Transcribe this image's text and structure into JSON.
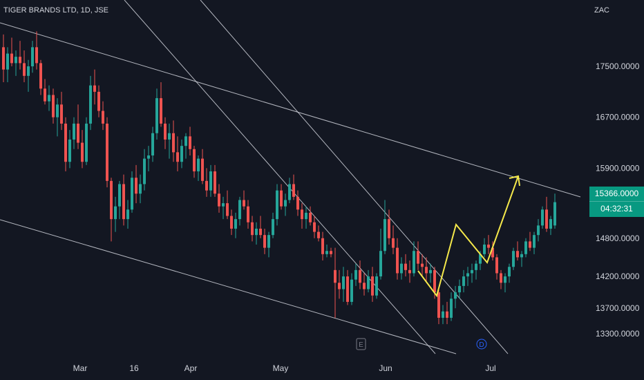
{
  "header": {
    "symbol": "TIGER BRANDS LTD, 1D, JSE",
    "currency": "ZAC"
  },
  "last_price": {
    "value": "15366.0000",
    "countdown": "04:32:31"
  },
  "events": [
    {
      "label": "E",
      "date": "earnings"
    },
    {
      "label": "D",
      "date": "dividend"
    }
  ],
  "colors": {
    "background": "#131722",
    "up": "#26a69a",
    "down": "#ef5350",
    "trendline": "#d1d4dc",
    "annotation": "#f5e94b",
    "badge": "#089981"
  },
  "chart_data": {
    "type": "candlestick",
    "y_ticks": [
      "17500.0000",
      "16700.0000",
      "15900.0000",
      "14800.0000",
      "14200.0000",
      "13700.0000",
      "13300.0000"
    ],
    "x_ticks": [
      "Mar",
      "16",
      "Apr",
      "May",
      "Jun",
      "Jul"
    ],
    "ylim": [
      12950,
      18100
    ],
    "candles": [
      [
        17800,
        18000,
        17250,
        17450
      ],
      [
        17450,
        17800,
        17250,
        17700
      ],
      [
        17700,
        17950,
        17500,
        17550
      ],
      [
        17550,
        17750,
        17350,
        17650
      ],
      [
        17650,
        17900,
        17450,
        17550
      ],
      [
        17550,
        17750,
        17250,
        17350
      ],
      [
        17350,
        17600,
        17100,
        17500
      ],
      [
        17500,
        17900,
        17400,
        17800
      ],
      [
        17800,
        18050,
        17450,
        17550
      ],
      [
        17550,
        17600,
        17050,
        17150
      ],
      [
        17150,
        17300,
        16900,
        16950
      ],
      [
        16950,
        17200,
        16800,
        17050
      ],
      [
        17050,
        17150,
        16600,
        16700
      ],
      [
        16700,
        17000,
        16400,
        16900
      ],
      [
        16900,
        17100,
        16500,
        16600
      ],
      [
        16600,
        16700,
        15850,
        16000
      ],
      [
        16000,
        16500,
        15900,
        16350
      ],
      [
        16350,
        16700,
        16200,
        16600
      ],
      [
        16600,
        16900,
        16200,
        16300
      ],
      [
        16300,
        16500,
        15900,
        16000
      ],
      [
        16000,
        16700,
        15950,
        16600
      ],
      [
        16600,
        17350,
        16500,
        17200
      ],
      [
        17200,
        17450,
        16900,
        17100
      ],
      [
        17100,
        17200,
        16700,
        16800
      ],
      [
        16800,
        16950,
        16500,
        16600
      ],
      [
        16600,
        16700,
        15600,
        15700
      ],
      [
        15700,
        15750,
        14750,
        15100
      ],
      [
        15100,
        15450,
        14900,
        15300
      ],
      [
        15300,
        15700,
        15100,
        15650
      ],
      [
        15650,
        15800,
        15000,
        15100
      ],
      [
        15100,
        15400,
        14950,
        15250
      ],
      [
        15250,
        15850,
        15200,
        15750
      ],
      [
        15750,
        15950,
        15350,
        15500
      ],
      [
        15500,
        15800,
        15350,
        15650
      ],
      [
        15650,
        16200,
        15550,
        16050
      ],
      [
        16050,
        16250,
        15850,
        16100
      ],
      [
        16100,
        16550,
        16000,
        16450
      ],
      [
        16450,
        17150,
        16350,
        17000
      ],
      [
        17000,
        17250,
        16550,
        16600
      ],
      [
        16600,
        16700,
        16200,
        16350
      ],
      [
        16350,
        16600,
        16050,
        16450
      ],
      [
        16450,
        16650,
        16000,
        16150
      ],
      [
        16150,
        16400,
        15850,
        16000
      ],
      [
        16000,
        16350,
        15900,
        16250
      ],
      [
        16250,
        16450,
        16050,
        16400
      ],
      [
        16400,
        16550,
        16100,
        16200
      ],
      [
        16200,
        16250,
        15750,
        15850
      ],
      [
        15850,
        16100,
        15700,
        16050
      ],
      [
        16050,
        16200,
        15650,
        15700
      ],
      [
        15700,
        15900,
        15450,
        15550
      ],
      [
        15550,
        15950,
        15450,
        15850
      ],
      [
        15850,
        15950,
        15450,
        15500
      ],
      [
        15500,
        15650,
        15200,
        15300
      ],
      [
        15300,
        15450,
        15100,
        15350
      ],
      [
        15350,
        15550,
        15100,
        15150
      ],
      [
        15150,
        15250,
        14850,
        14950
      ],
      [
        14950,
        15200,
        14800,
        15100
      ],
      [
        15100,
        15450,
        15000,
        15400
      ],
      [
        15400,
        15550,
        15250,
        15300
      ],
      [
        15300,
        15400,
        14950,
        15050
      ],
      [
        15050,
        15150,
        14750,
        14850
      ],
      [
        14850,
        15050,
        14700,
        14950
      ],
      [
        14950,
        15150,
        14800,
        14850
      ],
      [
        14850,
        14950,
        14550,
        14650
      ],
      [
        14650,
        14900,
        14500,
        14850
      ],
      [
        14850,
        15200,
        14800,
        15100
      ],
      [
        15100,
        15650,
        15000,
        15550
      ],
      [
        15550,
        15650,
        15250,
        15300
      ],
      [
        15300,
        15500,
        15150,
        15400
      ],
      [
        15400,
        15750,
        15350,
        15650
      ],
      [
        15650,
        15800,
        15400,
        15450
      ],
      [
        15450,
        15550,
        15150,
        15250
      ],
      [
        15250,
        15350,
        14950,
        15100
      ],
      [
        15100,
        15300,
        14950,
        15200
      ],
      [
        15200,
        15300,
        15000,
        15050
      ],
      [
        15050,
        15150,
        14800,
        14900
      ],
      [
        14900,
        15000,
        14750,
        14800
      ],
      [
        14800,
        14900,
        14450,
        14550
      ],
      [
        14550,
        14700,
        14500,
        14600
      ],
      [
        14600,
        14650,
        14500,
        14550
      ],
      [
        14300,
        14650,
        13550,
        14100
      ],
      [
        14100,
        14300,
        13850,
        14000
      ],
      [
        14000,
        14350,
        13800,
        14200
      ],
      [
        14200,
        14300,
        13750,
        13800
      ],
      [
        13800,
        14250,
        13750,
        14150
      ],
      [
        14150,
        14400,
        14050,
        14300
      ],
      [
        14300,
        14450,
        14000,
        14100
      ],
      [
        14100,
        14250,
        13900,
        14000
      ],
      [
        14000,
        14300,
        13950,
        14200
      ],
      [
        14200,
        14350,
        13800,
        13900
      ],
      [
        13900,
        14250,
        13850,
        14200
      ],
      [
        14200,
        14950,
        14150,
        14600
      ],
      [
        14600,
        15400,
        14550,
        15100
      ],
      [
        15100,
        15250,
        14700,
        14800
      ],
      [
        14800,
        15000,
        14550,
        14650
      ],
      [
        14650,
        14800,
        14150,
        14250
      ],
      [
        14250,
        14500,
        14150,
        14400
      ],
      [
        14400,
        14550,
        14200,
        14300
      ],
      [
        14300,
        14450,
        14100,
        14250
      ],
      [
        14250,
        14750,
        14200,
        14600
      ],
      [
        14600,
        14750,
        14300,
        14400
      ],
      [
        14400,
        14550,
        14200,
        14350
      ],
      [
        14350,
        14500,
        14100,
        14250
      ],
      [
        14250,
        14400,
        14100,
        14300
      ],
      [
        14300,
        14350,
        13850,
        13950
      ],
      [
        13950,
        14000,
        13450,
        13550
      ],
      [
        13550,
        13750,
        13450,
        13650
      ],
      [
        13650,
        13800,
        13450,
        13550
      ],
      [
        13550,
        13950,
        13500,
        13850
      ],
      [
        13850,
        14050,
        13700,
        13950
      ],
      [
        13950,
        14150,
        13850,
        14050
      ],
      [
        14050,
        14300,
        13950,
        14200
      ],
      [
        14200,
        14350,
        14050,
        14250
      ],
      [
        14250,
        14400,
        14100,
        14300
      ],
      [
        14300,
        14450,
        14150,
        14400
      ],
      [
        14400,
        14600,
        14300,
        14550
      ],
      [
        14550,
        14800,
        14500,
        14700
      ],
      [
        14700,
        14850,
        14550,
        14650
      ],
      [
        14650,
        14750,
        14450,
        14500
      ],
      [
        14500,
        14550,
        14150,
        14250
      ],
      [
        14250,
        14300,
        14000,
        14100
      ],
      [
        14100,
        14250,
        13950,
        14200
      ],
      [
        14200,
        14400,
        14100,
        14350
      ],
      [
        14350,
        14650,
        14300,
        14600
      ],
      [
        14600,
        14750,
        14450,
        14500
      ],
      [
        14500,
        14600,
        14350,
        14550
      ],
      [
        14550,
        14800,
        14500,
        14750
      ],
      [
        14750,
        14900,
        14600,
        14650
      ],
      [
        14650,
        14900,
        14550,
        14850
      ],
      [
        14850,
        15100,
        14750,
        15000
      ],
      [
        15000,
        15300,
        14950,
        15250
      ],
      [
        15250,
        15450,
        14900,
        14950
      ],
      [
        14950,
        15150,
        14850,
        15100
      ],
      [
        15000,
        15500,
        14950,
        15366
      ]
    ],
    "trendlines": "channel lines (descending) drawn on chart",
    "annotation": "yellow zig-zag arrow path pointing up"
  }
}
